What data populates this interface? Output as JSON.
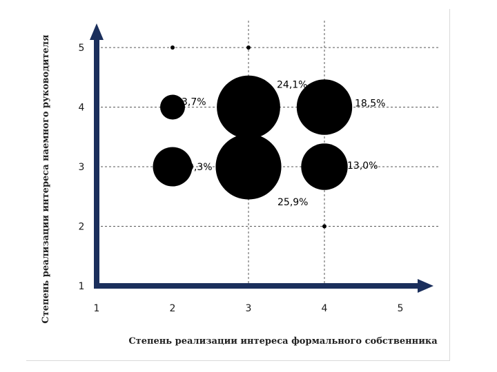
{
  "chart_data": {
    "type": "scatter",
    "title": "",
    "xlabel": "Степень реализации интереса формального собственника",
    "ylabel": "Степень реализации интереса наемного руководителя",
    "xlim": [
      1,
      5
    ],
    "ylim": [
      1,
      5
    ],
    "x_ticks": [
      "1",
      "2",
      "3",
      "4",
      "5"
    ],
    "y_ticks": [
      "1",
      "2",
      "3",
      "4",
      "5"
    ],
    "grid": "dashed",
    "points": [
      {
        "x": 2,
        "y": 5,
        "label": ""
      },
      {
        "x": 3,
        "y": 5,
        "label": ""
      },
      {
        "x": 2,
        "y": 4,
        "label": "3,7%",
        "value": 3.7
      },
      {
        "x": 3,
        "y": 4,
        "label": "24,1%",
        "value": 24.1
      },
      {
        "x": 4,
        "y": 4,
        "label": "18,5%",
        "value": 18.5
      },
      {
        "x": 2,
        "y": 3,
        "label": "9,3%",
        "value": 9.3
      },
      {
        "x": 3,
        "y": 3,
        "label": "25,9%",
        "value": 25.9
      },
      {
        "x": 4,
        "y": 3,
        "label": "13,0%",
        "value": 13.0
      },
      {
        "x": 4,
        "y": 2,
        "label": ""
      }
    ],
    "colors": {
      "axis": "#1b2f5c",
      "bubble": "#000000",
      "grid": "#555555"
    }
  }
}
